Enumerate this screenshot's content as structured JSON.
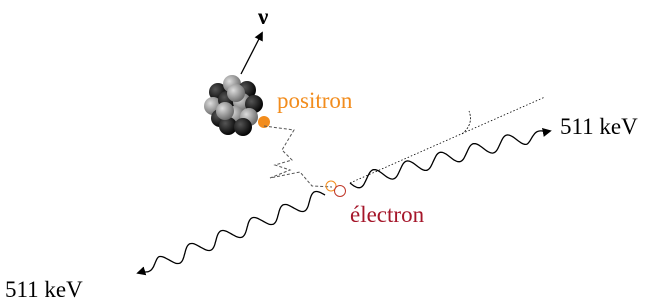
{
  "labels": {
    "neutrino": "ν",
    "positron": "positron",
    "electron": "électron",
    "photon_right": "511 keV",
    "photon_left": "511 keV"
  }
}
